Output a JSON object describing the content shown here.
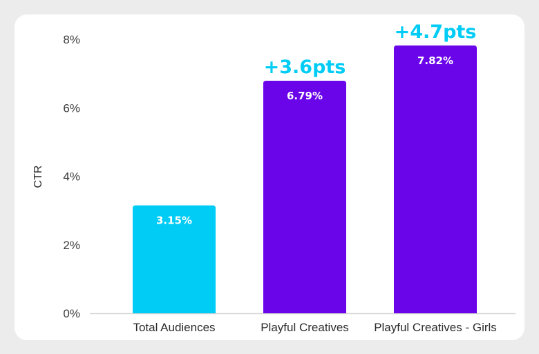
{
  "chart_data": {
    "type": "bar",
    "title": "",
    "xlabel": "",
    "ylabel": "CTR",
    "ylim": [
      0,
      8
    ],
    "yticks": [
      0,
      2,
      4,
      6,
      8
    ],
    "ytick_labels": [
      "0%",
      "2%",
      "4%",
      "6%",
      "8%"
    ],
    "categories": [
      "Total Audiences",
      "Playful Creatives",
      "Playful Creatives - Girls"
    ],
    "values": [
      3.15,
      6.79,
      7.82
    ],
    "value_labels": [
      "3.15%",
      "6.79%",
      "7.82%"
    ],
    "colors": [
      "#00ccf5",
      "#6a05ea",
      "#6a05ea"
    ],
    "annotations": [
      "",
      "+3.6pts",
      "+4.7pts"
    ],
    "annotation_color": "#00ccf5",
    "value_label_color": "#ffffff",
    "axis_color": "#d4d4d4",
    "grid": false
  }
}
